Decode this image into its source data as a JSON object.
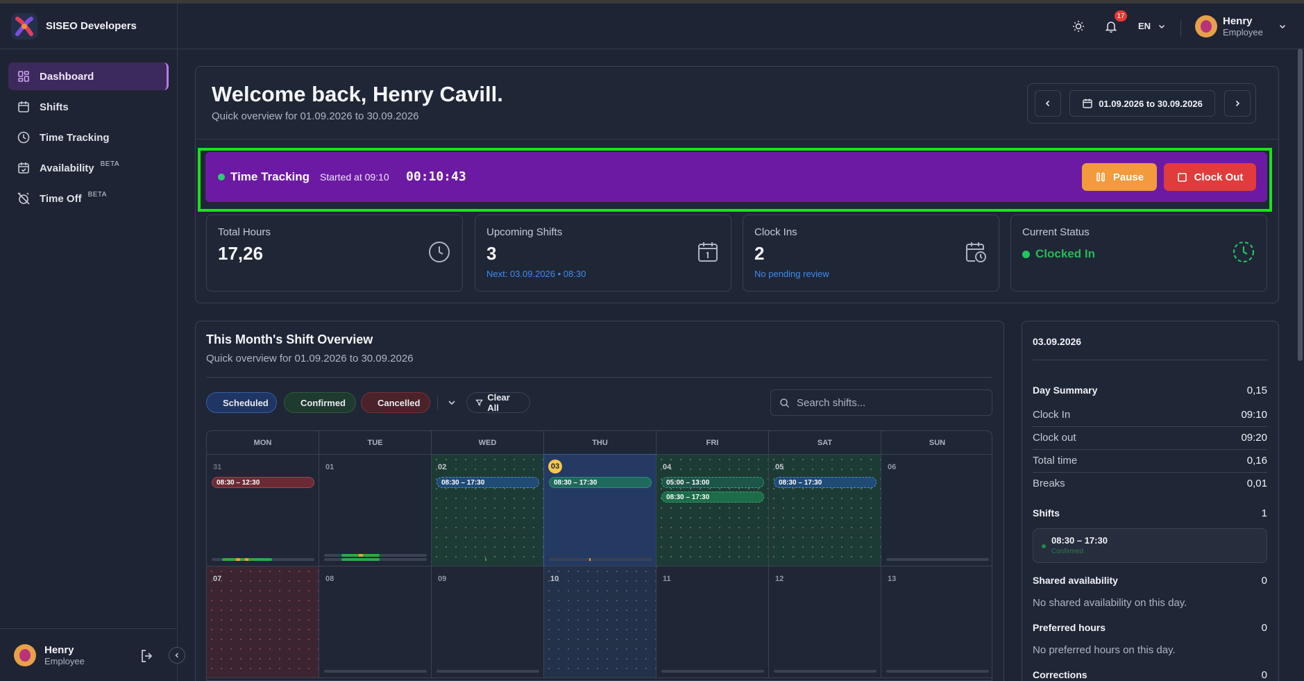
{
  "app": {
    "name": "SISEO Developers"
  },
  "sidebar": {
    "items": [
      {
        "label": "Dashboard",
        "icon": "dashboard-icon",
        "active": true
      },
      {
        "label": "Shifts",
        "icon": "calendar-icon"
      },
      {
        "label": "Time Tracking",
        "icon": "clock-icon"
      },
      {
        "label": "Availability",
        "icon": "calendar-check-icon",
        "badge": "BETA"
      },
      {
        "label": "Time Off",
        "icon": "alarm-off-icon",
        "badge": "BETA"
      }
    ],
    "user": {
      "name": "Henry",
      "role": "Employee"
    }
  },
  "topbar": {
    "notifications": "17",
    "language": "EN",
    "user": {
      "name": "Henry",
      "role": "Employee"
    }
  },
  "header": {
    "title": "Welcome back, Henry Cavill.",
    "subtitle": "Quick overview for 01.09.2026 to 30.09.2026",
    "date_range": "01.09.2026 to 30.09.2026"
  },
  "time_tracking": {
    "label": "Time Tracking",
    "started": "Started at 09:10",
    "timer": "00:10:43",
    "pause_label": "Pause",
    "clockout_label": "Clock Out",
    "bar_color": "#6c1aa3"
  },
  "stats": [
    {
      "label": "Total Hours",
      "value": "17,26",
      "icon": "clock-icon"
    },
    {
      "label": "Upcoming Shifts",
      "value": "3",
      "sub": "Next: 03.09.2026 • 08:30",
      "icon": "calendar-icon"
    },
    {
      "label": "Clock Ins",
      "value": "2",
      "sub": "No pending review",
      "icon": "calendar-clock-icon"
    },
    {
      "label": "Current Status",
      "value": "Clocked In",
      "icon": "progress-icon"
    }
  ],
  "overview": {
    "title": "This Month's Shift Overview",
    "subtitle": "Quick overview for 01.09.2026 to 30.09.2026",
    "filters": [
      "Scheduled",
      "Confirmed",
      "Cancelled"
    ],
    "clear_label": "Clear All",
    "search_placeholder": "Search shifts..."
  },
  "calendar": {
    "weekdays": [
      "MON",
      "TUE",
      "WED",
      "THU",
      "FRI",
      "SAT",
      "SUN"
    ],
    "week1": [
      "31",
      "01",
      "02",
      "03",
      "04",
      "05",
      "06"
    ],
    "week2": [
      "07",
      "08",
      "09",
      "10",
      "11",
      "12",
      "13"
    ],
    "shifts": {
      "mon": "08:30 – 12:30",
      "wed": "08:30 – 17:30",
      "thu": "08:30 – 17:30",
      "fri_a": "05:00 – 13:00",
      "fri_b": "08:30 – 17:30",
      "sat": "08:30 – 17:30"
    }
  },
  "day_panel": {
    "date": "03.09.2026",
    "summary_label": "Day Summary",
    "summary_value": "0,15",
    "rows": [
      {
        "label": "Clock In",
        "value": "09:10"
      },
      {
        "label": "Clock out",
        "value": "09:20"
      },
      {
        "label": "Total time",
        "value": "0,16"
      },
      {
        "label": "Breaks",
        "value": "0,01"
      }
    ],
    "shifts_label": "Shifts",
    "shifts_count": "1",
    "shift_time": "08:30 – 17:30",
    "shift_status": "Confirmed",
    "shared_label": "Shared availability",
    "shared_count": "0",
    "shared_note": "No shared availability on this day.",
    "preferred_label": "Preferred hours",
    "preferred_count": "0",
    "preferred_note": "No preferred hours on this day.",
    "corrections_label": "Corrections",
    "corrections_count": "0"
  }
}
